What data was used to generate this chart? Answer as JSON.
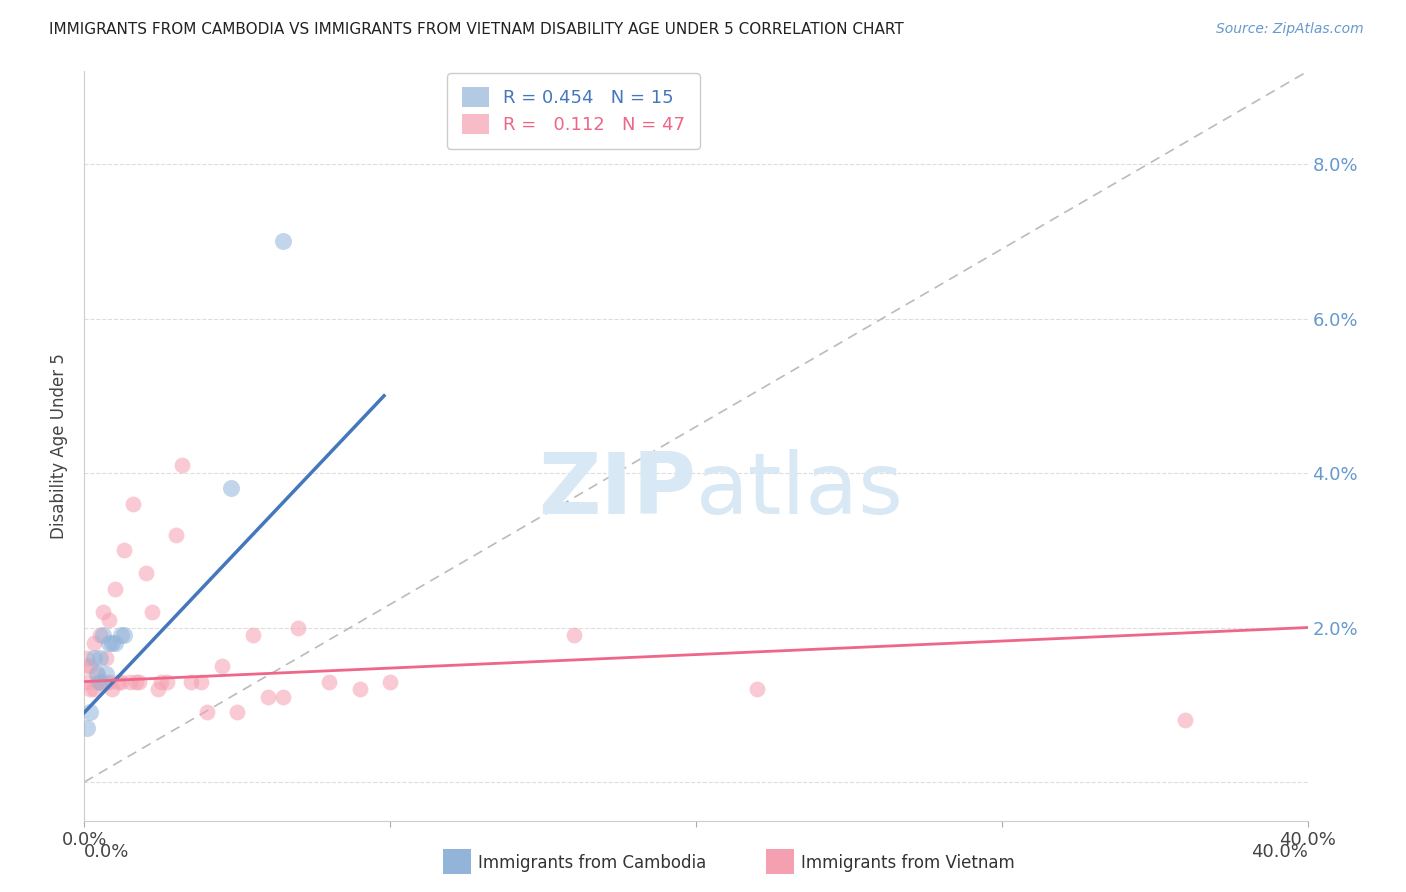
{
  "title": "IMMIGRANTS FROM CAMBODIA VS IMMIGRANTS FROM VIETNAM DISABILITY AGE UNDER 5 CORRELATION CHART",
  "source": "Source: ZipAtlas.com",
  "ylabel": "Disability Age Under 5",
  "xlim": [
    0.0,
    0.4
  ],
  "ylim": [
    -0.005,
    0.092
  ],
  "yticks": [
    0.0,
    0.02,
    0.04,
    0.06,
    0.08
  ],
  "ytick_labels": [
    "",
    "2.0%",
    "4.0%",
    "6.0%",
    "8.0%"
  ],
  "xticks": [
    0.0,
    0.1,
    0.2,
    0.3,
    0.4
  ],
  "xtick_labels": [
    "0.0%",
    "",
    "",
    "",
    "40.0%"
  ],
  "legend_r1": "R = 0.454   N = 15",
  "legend_r2": "R =   0.112   N = 47",
  "legend_label1": "Immigrants from Cambodia",
  "legend_label2": "Immigrants from Vietnam",
  "cambodia_color": "#92B4D9",
  "vietnam_color": "#F5A0B0",
  "cambodia_line_color": "#4477BB",
  "vietnam_line_color": "#EE6688",
  "diagonal_color": "#BBBBBB",
  "watermark_color": "#D8E8F5",
  "cambodia_x": [
    0.001,
    0.002,
    0.003,
    0.004,
    0.005,
    0.005,
    0.006,
    0.007,
    0.008,
    0.009,
    0.01,
    0.012,
    0.013,
    0.048,
    0.065
  ],
  "cambodia_y": [
    0.007,
    0.009,
    0.016,
    0.014,
    0.016,
    0.013,
    0.019,
    0.014,
    0.018,
    0.018,
    0.018,
    0.019,
    0.019,
    0.038,
    0.07
  ],
  "vietnam_x": [
    0.001,
    0.001,
    0.001,
    0.002,
    0.002,
    0.003,
    0.003,
    0.004,
    0.004,
    0.005,
    0.005,
    0.006,
    0.007,
    0.007,
    0.008,
    0.008,
    0.009,
    0.01,
    0.011,
    0.012,
    0.013,
    0.015,
    0.016,
    0.017,
    0.018,
    0.02,
    0.022,
    0.024,
    0.025,
    0.027,
    0.03,
    0.032,
    0.035,
    0.038,
    0.04,
    0.045,
    0.05,
    0.055,
    0.06,
    0.065,
    0.07,
    0.08,
    0.09,
    0.1,
    0.16,
    0.22,
    0.36
  ],
  "vietnam_y": [
    0.013,
    0.015,
    0.016,
    0.012,
    0.015,
    0.012,
    0.018,
    0.013,
    0.014,
    0.013,
    0.019,
    0.022,
    0.013,
    0.016,
    0.013,
    0.021,
    0.012,
    0.025,
    0.013,
    0.013,
    0.03,
    0.013,
    0.036,
    0.013,
    0.013,
    0.027,
    0.022,
    0.012,
    0.013,
    0.013,
    0.032,
    0.041,
    0.013,
    0.013,
    0.009,
    0.015,
    0.009,
    0.019,
    0.011,
    0.011,
    0.02,
    0.013,
    0.012,
    0.013,
    0.019,
    0.012,
    0.008
  ],
  "background_color": "#FFFFFF",
  "grid_color": "#DDDDDD",
  "cam_line_x0": 0.0,
  "cam_line_y0": 0.009,
  "cam_line_x1": 0.098,
  "cam_line_y1": 0.05,
  "viet_line_x0": 0.0,
  "viet_line_y0": 0.013,
  "viet_line_x1": 0.4,
  "viet_line_y1": 0.02
}
